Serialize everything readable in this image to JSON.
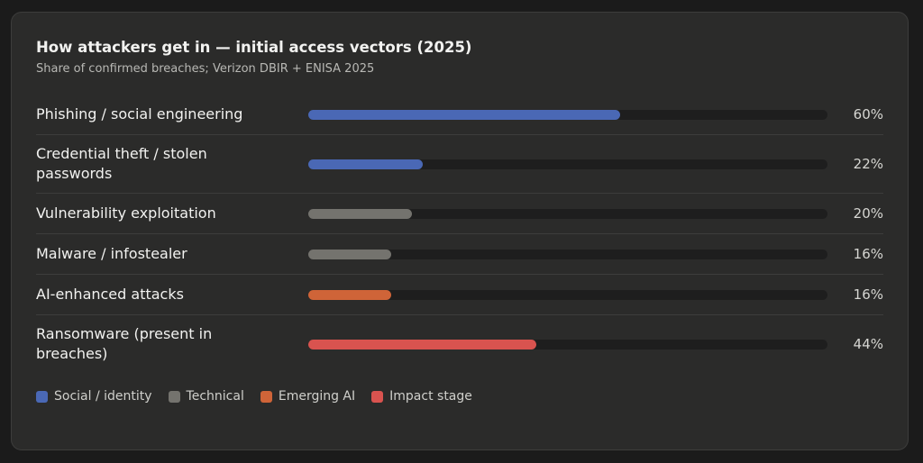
{
  "chart_data": {
    "type": "bar",
    "title": "How attackers get in — initial access vectors (2025)",
    "subtitle": "Share of confirmed breaches; Verizon DBIR + ENISA 2025",
    "categories": [
      "Phishing / social engineering",
      "Credential theft / stolen passwords",
      "Vulnerability exploitation",
      "Malware / infostealer",
      "AI-enhanced attacks",
      "Ransomware (present in breaches)"
    ],
    "values": [
      60,
      22,
      20,
      16,
      16,
      44
    ],
    "value_labels": [
      "60%",
      "22%",
      "20%",
      "16%",
      "16%",
      "44%"
    ],
    "colors": [
      "#4a68b5",
      "#4a68b5",
      "#74736e",
      "#74736e",
      "#cf6438",
      "#d9534f"
    ],
    "xlim": [
      0,
      100
    ],
    "legend": [
      {
        "name": "Social / identity",
        "color": "#4a68b5"
      },
      {
        "name": "Technical",
        "color": "#74736e"
      },
      {
        "name": "Emerging AI",
        "color": "#cf6438"
      },
      {
        "name": "Impact stage",
        "color": "#d9534f"
      }
    ]
  }
}
